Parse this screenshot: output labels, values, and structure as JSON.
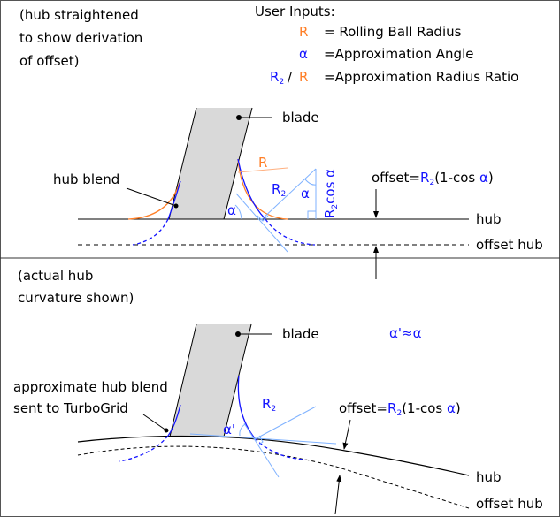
{
  "colors": {
    "blue": "#1414ff",
    "orange": "#ff7f27",
    "light_blue": "#7fb2ff",
    "blade_fill": "#d9d9d9"
  },
  "top_panel": {
    "note_lines": [
      "(hub straightened",
      "to show derivation",
      "of offset)"
    ],
    "user_inputs": {
      "title": "User Inputs:",
      "rows": [
        {
          "symbol": "R",
          "desc": "= Rolling Ball Radius"
        },
        {
          "symbol": "α",
          "desc": "=Approximation Angle"
        },
        {
          "symbol_num": "R",
          "symbol_sub": "2",
          "slash": "/",
          "symbol_den": "R",
          "desc": "=Approximation Radius Ratio"
        }
      ]
    },
    "blade_label": "blade",
    "hub_blend_label": "hub blend",
    "r_label": "R",
    "r2_label": "R",
    "r2_sub": "2",
    "alpha": "α",
    "r2cos": {
      "r": "R",
      "sub": "2",
      "rest": "cos α"
    },
    "offset_formula": {
      "prefix": "offset=",
      "r": "R",
      "sub": "2",
      "mid": "(1-cos ",
      "alpha": "α",
      "end": ")"
    },
    "hub_label": "hub",
    "offset_hub_label": "offset hub"
  },
  "bottom_panel": {
    "note_lines": [
      "(actual hub",
      "curvature shown)"
    ],
    "blade_label": "blade",
    "approx_note": "α'≈α",
    "approx_blend_lines": [
      "approximate hub blend",
      "sent to TurboGrid"
    ],
    "r2_label": "R",
    "r2_sub": "2",
    "alpha_prime": "α'",
    "offset_formula": {
      "prefix": "offset=",
      "r": "R",
      "sub": "2",
      "mid": "(1-cos ",
      "alpha": "α",
      "end": ")"
    },
    "hub_label": "hub",
    "offset_hub_label": "offset hub"
  }
}
